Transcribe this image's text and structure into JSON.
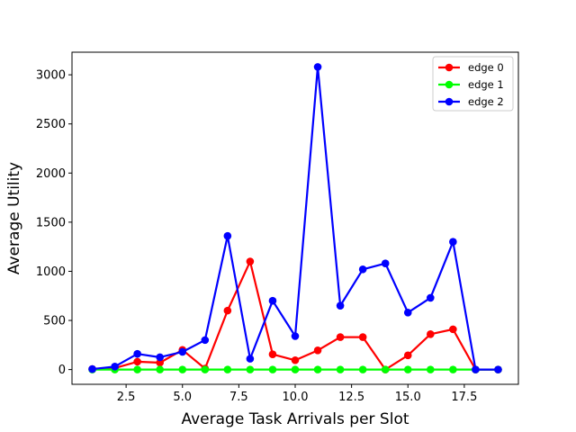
{
  "chart_data": {
    "type": "line",
    "title": "",
    "xlabel": "Average Task Arrivals per Slot",
    "ylabel": "Average Utility",
    "xlim": [
      0.1,
      19.9
    ],
    "ylim": [
      -150,
      3230
    ],
    "x_ticks": [
      2.5,
      5.0,
      7.5,
      10.0,
      12.5,
      15.0,
      17.5
    ],
    "x_tick_labels": [
      "2.5",
      "5.0",
      "7.5",
      "10.0",
      "12.5",
      "15.0",
      "17.5"
    ],
    "y_ticks": [
      0,
      500,
      1000,
      1500,
      2000,
      2500,
      3000
    ],
    "y_tick_labels": [
      "0",
      "500",
      "1000",
      "1500",
      "2000",
      "2500",
      "3000"
    ],
    "grid": false,
    "legend_position": "top-right",
    "x": [
      1,
      2,
      3,
      4,
      5,
      6,
      7,
      8,
      9,
      10,
      11,
      12,
      13,
      14,
      15,
      16,
      17,
      18,
      19
    ],
    "series": [
      {
        "name": "edge 0",
        "color": "#ff0000",
        "values": [
          5,
          15,
          80,
          70,
          200,
          10,
          600,
          1100,
          155,
          95,
          195,
          330,
          330,
          0,
          145,
          360,
          410,
          0,
          0
        ]
      },
      {
        "name": "edge 1",
        "color": "#00ff00",
        "values": [
          0,
          0,
          0,
          0,
          0,
          0,
          0,
          0,
          0,
          0,
          0,
          0,
          0,
          0,
          0,
          0,
          0,
          0,
          0
        ]
      },
      {
        "name": "edge 2",
        "color": "#0000ff",
        "values": [
          5,
          30,
          160,
          125,
          180,
          300,
          1360,
          110,
          700,
          340,
          3080,
          650,
          1020,
          1080,
          580,
          730,
          1300,
          0,
          0
        ]
      }
    ]
  }
}
